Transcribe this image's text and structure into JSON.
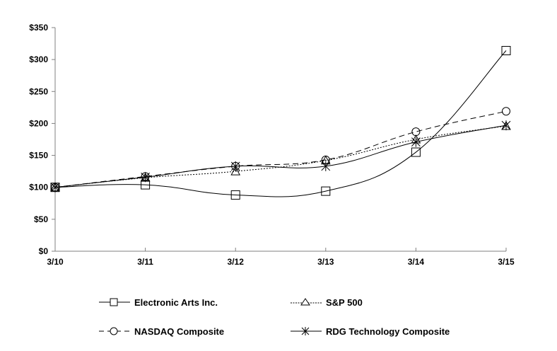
{
  "chart_data": {
    "type": "line",
    "title": "",
    "xlabel": "",
    "ylabel": "",
    "categories": [
      "3/10",
      "3/11",
      "3/12",
      "3/13",
      "3/14",
      "3/15"
    ],
    "ylim": [
      0,
      350
    ],
    "yticks": [
      0,
      50,
      100,
      150,
      200,
      250,
      300,
      350
    ],
    "ytick_labels": [
      "$0",
      "$50",
      "$100",
      "$150",
      "$200",
      "$250",
      "$300",
      "$350"
    ],
    "grid": false,
    "legend_position": "bottom",
    "series": [
      {
        "name": "Electronic Arts Inc.",
        "marker": "square",
        "line_style": "solid",
        "smooth": true,
        "values": [
          100,
          104,
          88,
          94,
          155,
          314
        ]
      },
      {
        "name": "S&P 500",
        "marker": "triangle",
        "line_style": "dotted",
        "smooth": true,
        "values": [
          100,
          115,
          125,
          142,
          175,
          196
        ]
      },
      {
        "name": "NASDAQ Composite",
        "marker": "circle",
        "line_style": "dashed",
        "smooth": true,
        "values": [
          100,
          117,
          133,
          143,
          187,
          219
        ]
      },
      {
        "name": "RDG Technology Composite",
        "marker": "asterisk",
        "line_style": "solid",
        "smooth": true,
        "values": [
          100,
          116,
          133,
          133,
          171,
          197
        ]
      }
    ]
  },
  "legend": {
    "items": [
      {
        "label": "Electronic Arts Inc."
      },
      {
        "label": "S&P 500"
      },
      {
        "label": "NASDAQ Composite"
      },
      {
        "label": "RDG Technology Composite"
      }
    ]
  },
  "colors": {
    "line": "#000000",
    "axis": "#808080",
    "background": "#ffffff"
  }
}
